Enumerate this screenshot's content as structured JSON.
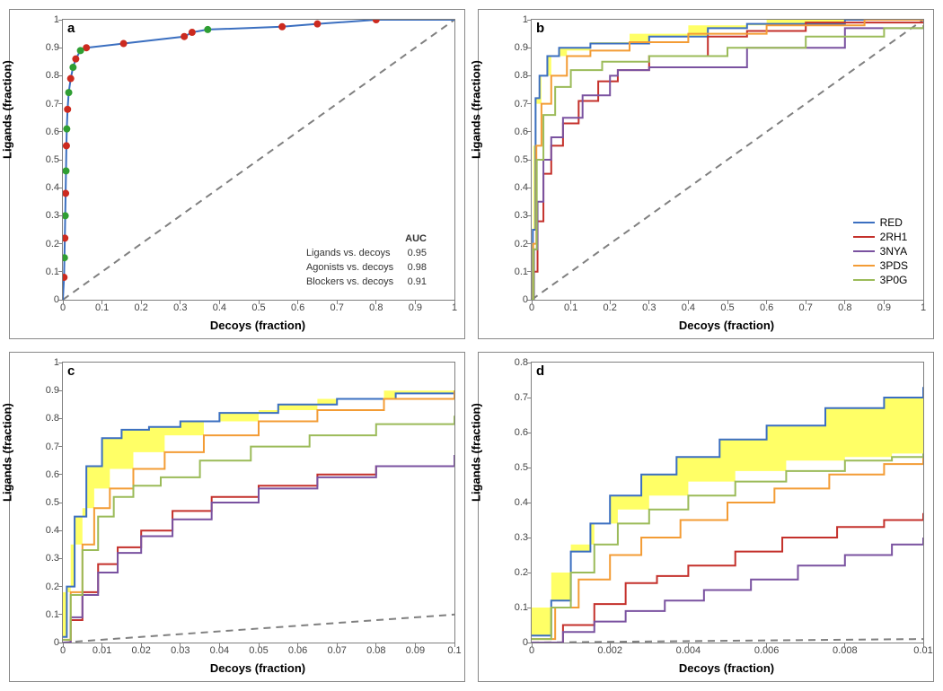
{
  "figure": {
    "background_color": "#ffffff",
    "panel_border_color": "#888888",
    "plot_border_color": "#7f7f7f",
    "diagonal": {
      "color": "#808080",
      "dash": "8,6",
      "width": 2
    },
    "axis_label_fontsize": 13,
    "tick_fontsize": 11,
    "panel_label_fontsize": 15,
    "ylabel": "Ligands (fraction)",
    "xlabel": "Decoys (fraction)"
  },
  "series_colors": {
    "RED": "#3b6fc0",
    "2RH1": "#c4302b",
    "3NYA": "#7a52a0",
    "3PDS": "#f39c35",
    "3P0G": "#9bbb59"
  },
  "highlight_fill": {
    "color": "#ffff66",
    "opacity": 1.0
  },
  "panel_a": {
    "label": "a",
    "xlim": [
      0,
      1
    ],
    "ylim": [
      0,
      1
    ],
    "xticks": [
      0,
      0.1,
      0.2,
      0.3,
      0.4,
      0.5,
      0.6,
      0.7,
      0.8,
      0.9,
      1
    ],
    "yticks": [
      0,
      0.1,
      0.2,
      0.3,
      0.4,
      0.5,
      0.6,
      0.7,
      0.8,
      0.9,
      1
    ],
    "roc_line_color": "#3b6fc0",
    "roc_line_width": 2,
    "roc_points": [
      [
        0.0,
        0.0
      ],
      [
        0.003,
        0.08
      ],
      [
        0.004,
        0.15
      ],
      [
        0.005,
        0.22
      ],
      [
        0.006,
        0.3
      ],
      [
        0.007,
        0.38
      ],
      [
        0.008,
        0.46
      ],
      [
        0.009,
        0.55
      ],
      [
        0.01,
        0.61
      ],
      [
        0.012,
        0.68
      ],
      [
        0.015,
        0.74
      ],
      [
        0.02,
        0.79
      ],
      [
        0.026,
        0.83
      ],
      [
        0.033,
        0.86
      ],
      [
        0.045,
        0.89
      ],
      [
        0.06,
        0.9
      ],
      [
        0.155,
        0.915
      ],
      [
        0.31,
        0.94
      ],
      [
        0.33,
        0.955
      ],
      [
        0.37,
        0.965
      ],
      [
        0.56,
        0.975
      ],
      [
        0.65,
        0.985
      ],
      [
        0.8,
        1.0
      ],
      [
        1.0,
        1.0
      ]
    ],
    "markers_red": {
      "color": "#cc2a1f",
      "size": 4,
      "points": [
        [
          0.003,
          0.08
        ],
        [
          0.005,
          0.22
        ],
        [
          0.007,
          0.38
        ],
        [
          0.009,
          0.55
        ],
        [
          0.012,
          0.68
        ],
        [
          0.02,
          0.79
        ],
        [
          0.033,
          0.86
        ],
        [
          0.06,
          0.9
        ],
        [
          0.155,
          0.915
        ],
        [
          0.31,
          0.94
        ],
        [
          0.33,
          0.955
        ],
        [
          0.56,
          0.975
        ],
        [
          0.65,
          0.985
        ],
        [
          0.8,
          1.0
        ]
      ]
    },
    "markers_green": {
      "color": "#2f9e33",
      "size": 4,
      "points": [
        [
          0.004,
          0.15
        ],
        [
          0.006,
          0.3
        ],
        [
          0.008,
          0.46
        ],
        [
          0.01,
          0.61
        ],
        [
          0.015,
          0.74
        ],
        [
          0.026,
          0.83
        ],
        [
          0.045,
          0.89
        ],
        [
          0.37,
          0.965
        ]
      ]
    },
    "auc_table": {
      "header": "AUC",
      "rows": [
        [
          "Ligands vs. decoys",
          "0.95"
        ],
        [
          "Agonists vs. decoys",
          "0.98"
        ],
        [
          "Blockers vs. decoys",
          "0.91"
        ]
      ]
    }
  },
  "panel_b": {
    "label": "b",
    "xlim": [
      0,
      1
    ],
    "ylim": [
      0,
      1
    ],
    "xticks": [
      0,
      0.1,
      0.2,
      0.3,
      0.4,
      0.5,
      0.6,
      0.7,
      0.8,
      0.9,
      1
    ],
    "yticks": [
      0,
      0.1,
      0.2,
      0.3,
      0.4,
      0.5,
      0.6,
      0.7,
      0.8,
      0.9,
      1
    ],
    "legend": [
      "RED",
      "2RH1",
      "3NYA",
      "3PDS",
      "3P0G"
    ],
    "highlight_between": [
      "RED",
      "3PDS"
    ],
    "series": {
      "RED": [
        [
          0,
          0
        ],
        [
          0.003,
          0.25
        ],
        [
          0.01,
          0.72
        ],
        [
          0.02,
          0.8
        ],
        [
          0.04,
          0.87
        ],
        [
          0.07,
          0.9
        ],
        [
          0.15,
          0.915
        ],
        [
          0.3,
          0.94
        ],
        [
          0.45,
          0.97
        ],
        [
          0.55,
          0.985
        ],
        [
          0.8,
          1.0
        ],
        [
          1.0,
          1.0
        ]
      ],
      "2RH1": [
        [
          0,
          0
        ],
        [
          0.005,
          0.1
        ],
        [
          0.015,
          0.28
        ],
        [
          0.03,
          0.45
        ],
        [
          0.05,
          0.55
        ],
        [
          0.08,
          0.63
        ],
        [
          0.12,
          0.71
        ],
        [
          0.17,
          0.78
        ],
        [
          0.22,
          0.82
        ],
        [
          0.3,
          0.87
        ],
        [
          0.45,
          0.94
        ],
        [
          0.55,
          0.96
        ],
        [
          0.7,
          0.99
        ],
        [
          1.0,
          0.99
        ]
      ],
      "3NYA": [
        [
          0,
          0
        ],
        [
          0.006,
          0.18
        ],
        [
          0.015,
          0.35
        ],
        [
          0.03,
          0.5
        ],
        [
          0.05,
          0.58
        ],
        [
          0.08,
          0.65
        ],
        [
          0.13,
          0.73
        ],
        [
          0.2,
          0.8
        ],
        [
          0.22,
          0.82
        ],
        [
          0.3,
          0.83
        ],
        [
          0.55,
          0.9
        ],
        [
          0.8,
          0.97
        ],
        [
          1.0,
          0.98
        ]
      ],
      "3PDS": [
        [
          0,
          0
        ],
        [
          0.004,
          0.2
        ],
        [
          0.012,
          0.55
        ],
        [
          0.025,
          0.7
        ],
        [
          0.05,
          0.8
        ],
        [
          0.09,
          0.87
        ],
        [
          0.15,
          0.89
        ],
        [
          0.25,
          0.92
        ],
        [
          0.4,
          0.95
        ],
        [
          0.6,
          0.98
        ],
        [
          0.85,
          1.0
        ],
        [
          1.0,
          1.0
        ]
      ],
      "3P0G": [
        [
          0,
          0
        ],
        [
          0.005,
          0.18
        ],
        [
          0.013,
          0.5
        ],
        [
          0.03,
          0.66
        ],
        [
          0.06,
          0.76
        ],
        [
          0.1,
          0.82
        ],
        [
          0.18,
          0.85
        ],
        [
          0.3,
          0.87
        ],
        [
          0.5,
          0.9
        ],
        [
          0.7,
          0.94
        ],
        [
          0.9,
          0.97
        ],
        [
          1.0,
          0.98
        ]
      ]
    }
  },
  "panel_c": {
    "label": "c",
    "xlim": [
      0,
      0.1
    ],
    "ylim": [
      0,
      1
    ],
    "xticks": [
      0,
      0.01,
      0.02,
      0.03,
      0.04,
      0.05,
      0.06,
      0.07,
      0.08,
      0.09,
      0.1
    ],
    "yticks": [
      0,
      0.1,
      0.2,
      0.3,
      0.4,
      0.5,
      0.6,
      0.7,
      0.8,
      0.9,
      1
    ],
    "highlight_between": [
      "RED",
      "3PDS"
    ],
    "series": {
      "RED": [
        [
          0,
          0.02
        ],
        [
          0.001,
          0.2
        ],
        [
          0.003,
          0.45
        ],
        [
          0.006,
          0.63
        ],
        [
          0.01,
          0.73
        ],
        [
          0.015,
          0.76
        ],
        [
          0.022,
          0.77
        ],
        [
          0.03,
          0.79
        ],
        [
          0.04,
          0.82
        ],
        [
          0.055,
          0.85
        ],
        [
          0.07,
          0.87
        ],
        [
          0.085,
          0.89
        ],
        [
          0.1,
          0.9
        ]
      ],
      "2RH1": [
        [
          0,
          0.0
        ],
        [
          0.002,
          0.08
        ],
        [
          0.005,
          0.18
        ],
        [
          0.009,
          0.28
        ],
        [
          0.014,
          0.34
        ],
        [
          0.02,
          0.4
        ],
        [
          0.028,
          0.47
        ],
        [
          0.038,
          0.52
        ],
        [
          0.05,
          0.56
        ],
        [
          0.065,
          0.6
        ],
        [
          0.08,
          0.63
        ],
        [
          0.1,
          0.67
        ]
      ],
      "3NYA": [
        [
          0,
          0.0
        ],
        [
          0.002,
          0.09
        ],
        [
          0.005,
          0.17
        ],
        [
          0.009,
          0.25
        ],
        [
          0.014,
          0.32
        ],
        [
          0.02,
          0.38
        ],
        [
          0.028,
          0.44
        ],
        [
          0.038,
          0.5
        ],
        [
          0.05,
          0.55
        ],
        [
          0.065,
          0.59
        ],
        [
          0.08,
          0.63
        ],
        [
          0.1,
          0.67
        ]
      ],
      "3PDS": [
        [
          0,
          0.01
        ],
        [
          0.002,
          0.18
        ],
        [
          0.005,
          0.35
        ],
        [
          0.008,
          0.48
        ],
        [
          0.012,
          0.55
        ],
        [
          0.018,
          0.62
        ],
        [
          0.026,
          0.68
        ],
        [
          0.036,
          0.74
        ],
        [
          0.05,
          0.79
        ],
        [
          0.065,
          0.83
        ],
        [
          0.082,
          0.87
        ],
        [
          0.1,
          0.9
        ]
      ],
      "3P0G": [
        [
          0,
          0.01
        ],
        [
          0.002,
          0.17
        ],
        [
          0.005,
          0.33
        ],
        [
          0.009,
          0.45
        ],
        [
          0.013,
          0.52
        ],
        [
          0.018,
          0.56
        ],
        [
          0.025,
          0.59
        ],
        [
          0.035,
          0.65
        ],
        [
          0.048,
          0.7
        ],
        [
          0.063,
          0.74
        ],
        [
          0.08,
          0.78
        ],
        [
          0.1,
          0.81
        ]
      ]
    }
  },
  "panel_d": {
    "label": "d",
    "xlim": [
      0,
      0.01
    ],
    "ylim": [
      0,
      0.8
    ],
    "xticks": [
      0,
      0.002,
      0.004,
      0.006,
      0.008,
      0.01
    ],
    "yticks": [
      0,
      0.1,
      0.2,
      0.3,
      0.4,
      0.5,
      0.6,
      0.7,
      0.8
    ],
    "highlight_between": [
      "RED",
      "3P0G"
    ],
    "series": {
      "RED": [
        [
          0,
          0.02
        ],
        [
          0.0005,
          0.12
        ],
        [
          0.001,
          0.26
        ],
        [
          0.0015,
          0.34
        ],
        [
          0.002,
          0.42
        ],
        [
          0.0028,
          0.48
        ],
        [
          0.0037,
          0.53
        ],
        [
          0.0048,
          0.58
        ],
        [
          0.006,
          0.62
        ],
        [
          0.0075,
          0.67
        ],
        [
          0.009,
          0.7
        ],
        [
          0.01,
          0.73
        ]
      ],
      "2RH1": [
        [
          0,
          0.0
        ],
        [
          0.0008,
          0.05
        ],
        [
          0.0016,
          0.11
        ],
        [
          0.0024,
          0.17
        ],
        [
          0.0032,
          0.19
        ],
        [
          0.004,
          0.22
        ],
        [
          0.0052,
          0.26
        ],
        [
          0.0064,
          0.3
        ],
        [
          0.0078,
          0.33
        ],
        [
          0.009,
          0.35
        ],
        [
          0.01,
          0.37
        ]
      ],
      "3NYA": [
        [
          0,
          0.0
        ],
        [
          0.0008,
          0.03
        ],
        [
          0.0016,
          0.06
        ],
        [
          0.0024,
          0.09
        ],
        [
          0.0034,
          0.12
        ],
        [
          0.0044,
          0.15
        ],
        [
          0.0056,
          0.18
        ],
        [
          0.0068,
          0.22
        ],
        [
          0.008,
          0.25
        ],
        [
          0.0092,
          0.28
        ],
        [
          0.01,
          0.3
        ]
      ],
      "3PDS": [
        [
          0,
          0.01
        ],
        [
          0.0006,
          0.1
        ],
        [
          0.0012,
          0.18
        ],
        [
          0.002,
          0.25
        ],
        [
          0.0028,
          0.3
        ],
        [
          0.0038,
          0.35
        ],
        [
          0.005,
          0.4
        ],
        [
          0.0062,
          0.44
        ],
        [
          0.0076,
          0.48
        ],
        [
          0.009,
          0.51
        ],
        [
          0.01,
          0.53
        ]
      ],
      "3P0G": [
        [
          0,
          0.01
        ],
        [
          0.0005,
          0.1
        ],
        [
          0.001,
          0.2
        ],
        [
          0.0016,
          0.28
        ],
        [
          0.0022,
          0.34
        ],
        [
          0.003,
          0.38
        ],
        [
          0.004,
          0.42
        ],
        [
          0.0052,
          0.46
        ],
        [
          0.0065,
          0.49
        ],
        [
          0.008,
          0.52
        ],
        [
          0.0092,
          0.53
        ],
        [
          0.01,
          0.54
        ]
      ]
    }
  }
}
